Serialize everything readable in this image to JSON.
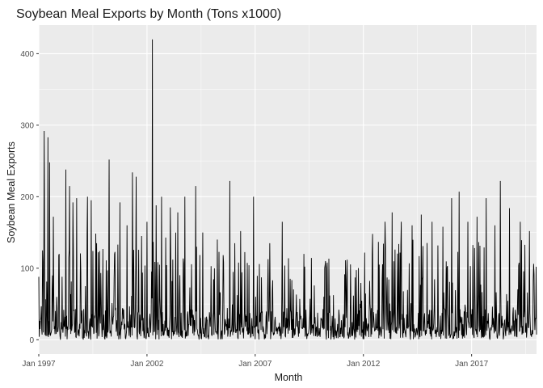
{
  "chart_data": {
    "type": "line",
    "title": "Soybean Meal Exports by Month (Tons x1000)",
    "xlabel": "Month",
    "ylabel": "Soybean Meal Exports",
    "x_ticks": [
      "Jan 1997",
      "Jan 2002",
      "Jan 2007",
      "Jan 2012",
      "Jan 2017"
    ],
    "y_ticks": [
      0,
      100,
      200,
      300,
      400
    ],
    "ylim": [
      -20,
      440
    ],
    "x_range": [
      "1997-01",
      "2019-12"
    ],
    "grid": true,
    "background": "#ebebeb",
    "gridline_color": "#ffffff",
    "line_color": "#000000",
    "series": [
      {
        "point_spacing": "weekly",
        "peaks": [
          {
            "x": "1997-01",
            "y": 88
          },
          {
            "x": "1997-03",
            "y": 125
          },
          {
            "x": "1997-04",
            "y": 292
          },
          {
            "x": "1997-06",
            "y": 283
          },
          {
            "x": "1997-07",
            "y": 248
          },
          {
            "x": "1997-09",
            "y": 172
          },
          {
            "x": "1997-11",
            "y": 60
          },
          {
            "x": "1998-02",
            "y": 88
          },
          {
            "x": "1998-04",
            "y": 238
          },
          {
            "x": "1998-06",
            "y": 215
          },
          {
            "x": "1998-08",
            "y": 192
          },
          {
            "x": "1998-10",
            "y": 198
          },
          {
            "x": "1999-04",
            "y": 200
          },
          {
            "x": "1999-06",
            "y": 195
          },
          {
            "x": "1999-09",
            "y": 135
          },
          {
            "x": "2000-04",
            "y": 252
          },
          {
            "x": "2000-07",
            "y": 120
          },
          {
            "x": "2000-10",
            "y": 192
          },
          {
            "x": "2001-02",
            "y": 160
          },
          {
            "x": "2001-05",
            "y": 234
          },
          {
            "x": "2001-07",
            "y": 228
          },
          {
            "x": "2001-10",
            "y": 145
          },
          {
            "x": "2002-01",
            "y": 165
          },
          {
            "x": "2002-04",
            "y": 420
          },
          {
            "x": "2002-06",
            "y": 188
          },
          {
            "x": "2002-09",
            "y": 200
          },
          {
            "x": "2003-02",
            "y": 185
          },
          {
            "x": "2003-06",
            "y": 178
          },
          {
            "x": "2003-10",
            "y": 200
          },
          {
            "x": "2004-04",
            "y": 215
          },
          {
            "x": "2004-08",
            "y": 150
          },
          {
            "x": "2005-04",
            "y": 140
          },
          {
            "x": "2005-11",
            "y": 222
          },
          {
            "x": "2006-05",
            "y": 152
          },
          {
            "x": "2006-12",
            "y": 200
          },
          {
            "x": "2007-09",
            "y": 135
          },
          {
            "x": "2008-04",
            "y": 165
          },
          {
            "x": "2009-04",
            "y": 120
          },
          {
            "x": "2010-04",
            "y": 110
          },
          {
            "x": "2011-04",
            "y": 112
          },
          {
            "x": "2012-06",
            "y": 148
          },
          {
            "x": "2013-01",
            "y": 165
          },
          {
            "x": "2013-05",
            "y": 178
          },
          {
            "x": "2013-10",
            "y": 165
          },
          {
            "x": "2014-04",
            "y": 160
          },
          {
            "x": "2014-09",
            "y": 175
          },
          {
            "x": "2015-03",
            "y": 165
          },
          {
            "x": "2015-09",
            "y": 158
          },
          {
            "x": "2016-02",
            "y": 198
          },
          {
            "x": "2016-06",
            "y": 207
          },
          {
            "x": "2016-11",
            "y": 165
          },
          {
            "x": "2017-04",
            "y": 172
          },
          {
            "x": "2017-09",
            "y": 198
          },
          {
            "x": "2018-02",
            "y": 160
          },
          {
            "x": "2018-05",
            "y": 222
          },
          {
            "x": "2018-10",
            "y": 184
          },
          {
            "x": "2019-04",
            "y": 165
          },
          {
            "x": "2019-09",
            "y": 152
          }
        ]
      }
    ]
  }
}
